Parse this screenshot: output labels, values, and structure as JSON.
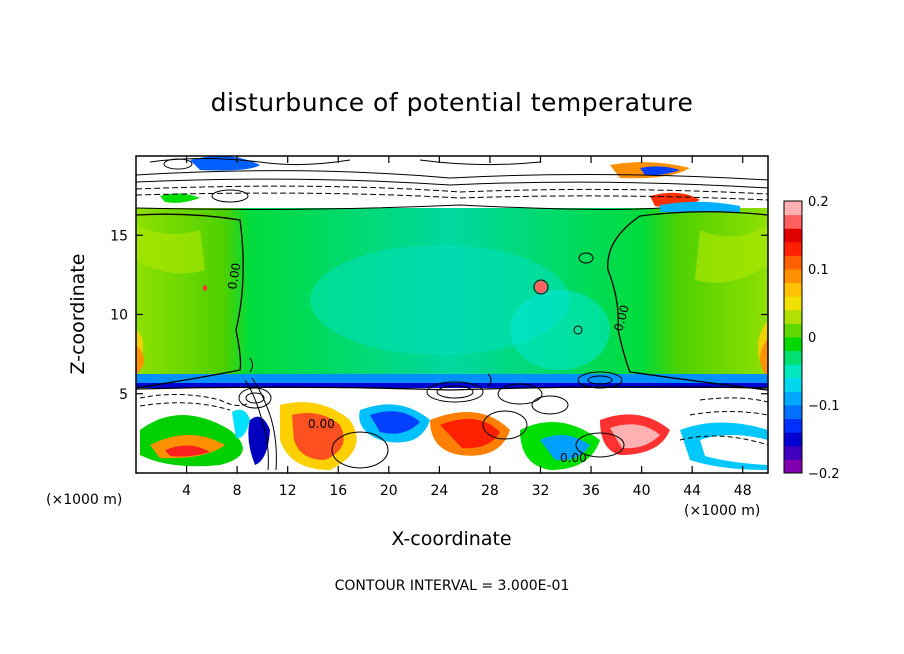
{
  "chart_data": {
    "type": "heatmap",
    "title": "disturbunce of potential temperature",
    "xlabel": "X-coordinate",
    "ylabel": "Z-coordinate",
    "x_unit_left": "(×1000 m)",
    "x_unit_right": "(×1000 m)",
    "xlim": [
      0,
      50
    ],
    "ylim": [
      0,
      20
    ],
    "x_ticks": [
      4,
      8,
      12,
      16,
      20,
      24,
      28,
      32,
      36,
      40,
      44,
      48
    ],
    "y_ticks": [
      5,
      10,
      15
    ],
    "colorbar": {
      "range": [
        -0.2,
        0.2
      ],
      "tick_values": [
        0.2,
        0.1,
        0,
        -0.1,
        -0.2
      ],
      "tick_labels": [
        "0.2",
        "0.1",
        "0",
        "−0.1",
        "−0.2"
      ]
    },
    "contour_labels": [
      "0.00",
      "0.00",
      "0.00",
      "0.00"
    ],
    "footer": "CONTOUR INTERVAL = 3.000E-01",
    "grid": false,
    "legend": "colorbar-right"
  }
}
